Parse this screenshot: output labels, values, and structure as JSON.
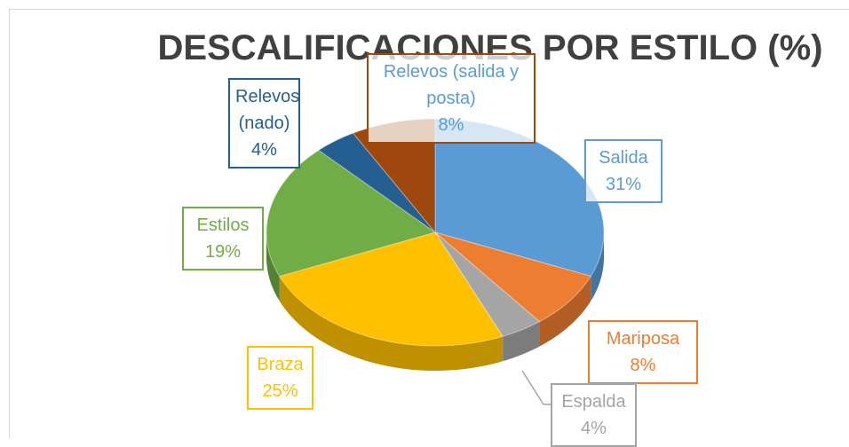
{
  "chart_data": {
    "type": "pie",
    "title": "DESCALIFICACIONES POR ESTILO (%)",
    "categories": [
      "Salida",
      "Mariposa",
      "Espalda",
      "Braza",
      "Estilos",
      "Relevos (nado)",
      "Relevos (salida y posta)"
    ],
    "values": [
      31,
      8,
      4,
      25,
      19,
      4,
      8
    ],
    "value_labels": [
      "31%",
      "8%",
      "4%",
      "25%",
      "19%",
      "4%",
      "8%"
    ],
    "colors": [
      "#5b9bd5",
      "#ed7d31",
      "#a5a5a5",
      "#ffc000",
      "#70ad47",
      "#255e91",
      "#9e480e"
    ]
  }
}
